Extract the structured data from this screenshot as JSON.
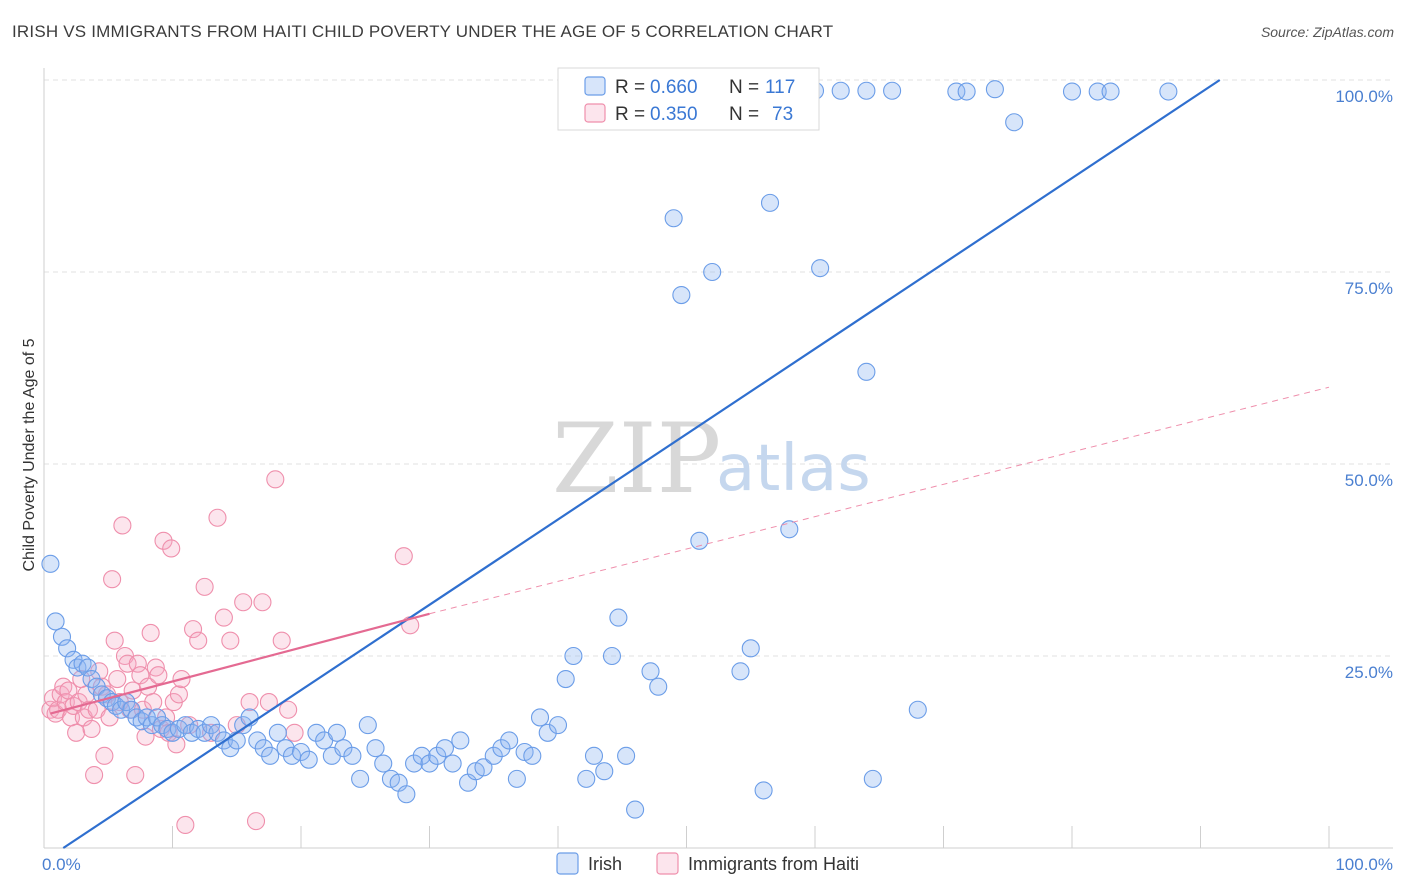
{
  "title": "IRISH VS IMMIGRANTS FROM HAITI CHILD POVERTY UNDER THE AGE OF 5 CORRELATION CHART",
  "source": "Source: ZipAtlas.com",
  "watermark": {
    "zip": "ZIP",
    "atlas": "atlas"
  },
  "colors": {
    "irish": "#6b9de8",
    "irish_fill": "rgba(140,180,240,0.35)",
    "irish_line": "#2f6fcf",
    "haiti": "#ef8fac",
    "haiti_fill": "rgba(245,170,195,0.30)",
    "haiti_line": "#e46a92",
    "grid": "#e2e2e2",
    "axis_text": "#4a7fd0"
  },
  "legend": {
    "rows": [
      {
        "r_label": "R = ",
        "r_value": "0.660",
        "n_label": "N = ",
        "n_value": "117"
      },
      {
        "r_label": "R = ",
        "r_value": "0.350",
        "n_label": "N = ",
        "n_value": "73"
      }
    ]
  },
  "chart_data": {
    "type": "scatter",
    "title": "IRISH VS IMMIGRANTS FROM HAITI CHILD POVERTY UNDER THE AGE OF 5 CORRELATION CHART",
    "xlabel": "",
    "ylabel": "Child Poverty Under the Age of 5",
    "xlim": [
      0,
      100
    ],
    "ylim": [
      0,
      100
    ],
    "x_tick_labels": [
      "0.0%",
      "100.0%"
    ],
    "y_ticks": [
      25,
      50,
      75,
      100
    ],
    "y_tick_labels": [
      "25.0%",
      "50.0%",
      "75.0%",
      "100.0%"
    ],
    "grid": true,
    "legend_position": "top-center",
    "series": [
      {
        "name": "Irish",
        "r": 0.66,
        "n": 117,
        "trend": {
          "x": [
            1.5,
            91.5
          ],
          "y": [
            0,
            100
          ],
          "style": "solid"
        },
        "points": [
          [
            0.5,
            37
          ],
          [
            0.9,
            29.5
          ],
          [
            1.4,
            27.5
          ],
          [
            1.8,
            26
          ],
          [
            2.3,
            24.5
          ],
          [
            2.6,
            23.5
          ],
          [
            3.0,
            24
          ],
          [
            3.4,
            23.5
          ],
          [
            3.7,
            22
          ],
          [
            4.1,
            21
          ],
          [
            4.5,
            20
          ],
          [
            4.9,
            19.5
          ],
          [
            5.3,
            19
          ],
          [
            5.6,
            18.5
          ],
          [
            6.0,
            18
          ],
          [
            6.4,
            19
          ],
          [
            6.8,
            18
          ],
          [
            7.2,
            17
          ],
          [
            7.6,
            16.5
          ],
          [
            8.0,
            17
          ],
          [
            8.4,
            16
          ],
          [
            8.8,
            17
          ],
          [
            9.2,
            16
          ],
          [
            9.6,
            15.5
          ],
          [
            10.0,
            15
          ],
          [
            10.5,
            15.5
          ],
          [
            11.0,
            16
          ],
          [
            11.5,
            15
          ],
          [
            12.0,
            15.5
          ],
          [
            12.5,
            15
          ],
          [
            13.0,
            16
          ],
          [
            13.5,
            15
          ],
          [
            14.0,
            14
          ],
          [
            14.5,
            13
          ],
          [
            15.0,
            14
          ],
          [
            15.5,
            16
          ],
          [
            16.0,
            17
          ],
          [
            16.6,
            14
          ],
          [
            17.1,
            13
          ],
          [
            17.6,
            12
          ],
          [
            18.2,
            15
          ],
          [
            18.8,
            13
          ],
          [
            19.3,
            12
          ],
          [
            20.0,
            12.5
          ],
          [
            20.6,
            11.5
          ],
          [
            21.2,
            15
          ],
          [
            21.8,
            14
          ],
          [
            22.4,
            12
          ],
          [
            22.8,
            15
          ],
          [
            23.3,
            13
          ],
          [
            24.0,
            12
          ],
          [
            24.6,
            9
          ],
          [
            25.2,
            16
          ],
          [
            25.8,
            13
          ],
          [
            26.4,
            11
          ],
          [
            27.0,
            9
          ],
          [
            27.6,
            8.5
          ],
          [
            28.2,
            7
          ],
          [
            28.8,
            11
          ],
          [
            29.4,
            12
          ],
          [
            30.0,
            11
          ],
          [
            30.6,
            12
          ],
          [
            31.2,
            13
          ],
          [
            31.8,
            11
          ],
          [
            32.4,
            14
          ],
          [
            33.0,
            8.5
          ],
          [
            33.6,
            10
          ],
          [
            34.2,
            10.5
          ],
          [
            35.0,
            12
          ],
          [
            35.6,
            13
          ],
          [
            36.2,
            14
          ],
          [
            36.8,
            9
          ],
          [
            37.4,
            12.5
          ],
          [
            38.0,
            12
          ],
          [
            38.6,
            17
          ],
          [
            39.2,
            15
          ],
          [
            40.0,
            16
          ],
          [
            40.6,
            22
          ],
          [
            41.2,
            25
          ],
          [
            42.2,
            9
          ],
          [
            42.8,
            12
          ],
          [
            43.6,
            10
          ],
          [
            44.2,
            25
          ],
          [
            44.7,
            30
          ],
          [
            45.3,
            12
          ],
          [
            46.0,
            5
          ],
          [
            47.2,
            23
          ],
          [
            47.8,
            21
          ],
          [
            49.0,
            82
          ],
          [
            49.6,
            72
          ],
          [
            51.0,
            40
          ],
          [
            52.0,
            75
          ],
          [
            54.2,
            23
          ],
          [
            55.0,
            26
          ],
          [
            56.0,
            7.5
          ],
          [
            56.5,
            84
          ],
          [
            58.0,
            41.5
          ],
          [
            60.4,
            75.5
          ],
          [
            64.0,
            62
          ],
          [
            64.5,
            9
          ],
          [
            68.0,
            18
          ],
          [
            71.0,
            98.5
          ],
          [
            71.8,
            98.5
          ],
          [
            75.5,
            94.5
          ],
          [
            80.0,
            98.5
          ],
          [
            82.0,
            98.5
          ],
          [
            83.0,
            98.5
          ],
          [
            87.5,
            98.5
          ],
          [
            74.0,
            98.8
          ],
          [
            43.0,
            98.6
          ],
          [
            45.0,
            98.6
          ],
          [
            47.0,
            98.6
          ],
          [
            60.0,
            98.6
          ],
          [
            62.0,
            98.6
          ],
          [
            64.0,
            98.6
          ],
          [
            66.0,
            98.6
          ],
          [
            50.0,
            98.6
          ]
        ]
      },
      {
        "name": "Immigrants from Haiti",
        "r": 0.35,
        "n": 73,
        "trend": {
          "x": [
            0.5,
            30
          ],
          "y": [
            17.5,
            30.5
          ],
          "style": "solid"
        },
        "trend_extended": {
          "x": [
            30,
            100
          ],
          "y": [
            30.5,
            60
          ],
          "style": "dashed"
        },
        "points": [
          [
            0.5,
            18
          ],
          [
            0.7,
            19.5
          ],
          [
            0.9,
            17.5
          ],
          [
            1.1,
            18
          ],
          [
            1.3,
            20
          ],
          [
            1.5,
            21
          ],
          [
            1.7,
            19
          ],
          [
            1.9,
            20.5
          ],
          [
            2.1,
            17
          ],
          [
            2.3,
            18.5
          ],
          [
            2.5,
            15
          ],
          [
            2.7,
            19
          ],
          [
            2.9,
            22
          ],
          [
            3.1,
            17
          ],
          [
            3.3,
            20
          ],
          [
            3.5,
            18
          ],
          [
            3.7,
            15.5
          ],
          [
            3.9,
            9.5
          ],
          [
            4.1,
            18
          ],
          [
            4.3,
            23
          ],
          [
            4.5,
            21
          ],
          [
            4.7,
            12
          ],
          [
            4.9,
            20
          ],
          [
            5.1,
            17
          ],
          [
            5.3,
            35
          ],
          [
            5.5,
            27
          ],
          [
            5.7,
            22
          ],
          [
            5.9,
            19
          ],
          [
            6.1,
            42
          ],
          [
            6.3,
            25
          ],
          [
            6.5,
            24
          ],
          [
            6.7,
            18
          ],
          [
            6.9,
            20.5
          ],
          [
            7.1,
            9.5
          ],
          [
            7.3,
            24
          ],
          [
            7.5,
            22.5
          ],
          [
            7.7,
            18
          ],
          [
            7.9,
            14.5
          ],
          [
            8.1,
            21
          ],
          [
            8.3,
            28
          ],
          [
            8.5,
            19
          ],
          [
            8.7,
            23.5
          ],
          [
            8.9,
            22.5
          ],
          [
            9.1,
            15.5
          ],
          [
            9.3,
            40
          ],
          [
            9.5,
            17
          ],
          [
            9.7,
            15
          ],
          [
            9.9,
            39
          ],
          [
            10.1,
            19
          ],
          [
            10.3,
            13.5
          ],
          [
            10.5,
            20
          ],
          [
            10.7,
            22
          ],
          [
            11.0,
            3
          ],
          [
            11.3,
            16
          ],
          [
            11.6,
            28.5
          ],
          [
            12.0,
            27
          ],
          [
            12.5,
            34
          ],
          [
            13.0,
            15
          ],
          [
            13.5,
            43
          ],
          [
            14.0,
            30
          ],
          [
            14.5,
            27
          ],
          [
            15.0,
            16
          ],
          [
            15.5,
            32
          ],
          [
            16.0,
            19
          ],
          [
            16.5,
            3.5
          ],
          [
            17.0,
            32
          ],
          [
            17.5,
            19
          ],
          [
            18.0,
            48
          ],
          [
            18.5,
            27
          ],
          [
            19.0,
            18
          ],
          [
            19.5,
            15
          ],
          [
            28.0,
            38
          ],
          [
            28.5,
            29
          ]
        ]
      }
    ]
  },
  "bottom_legend": [
    {
      "label": "Irish"
    },
    {
      "label": "Immigrants from Haiti"
    }
  ]
}
